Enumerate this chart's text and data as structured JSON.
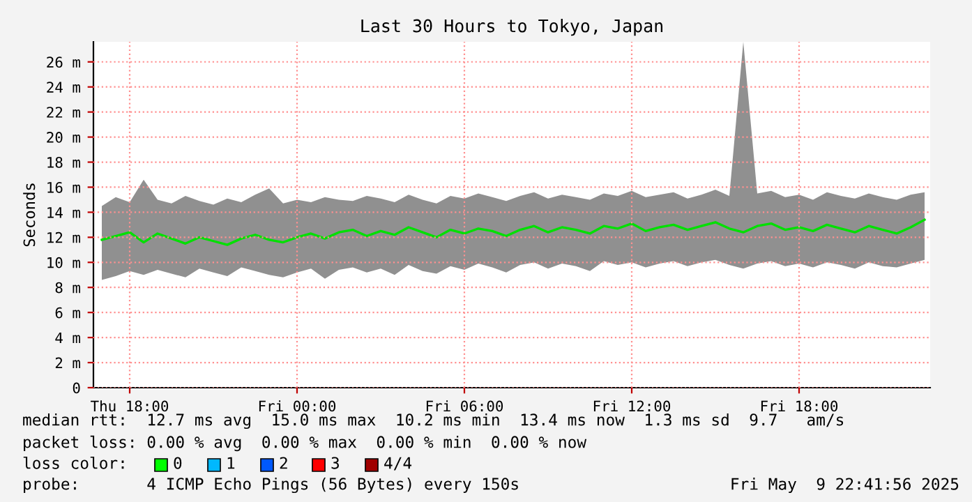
{
  "chart_data": {
    "type": "line",
    "title": "Last 30 Hours to Tokyo, Japan",
    "ylabel": "Seconds",
    "x": [
      "2025-05-08T17:00",
      "2025-05-08T17:30",
      "2025-05-08T18:00",
      "2025-05-08T18:30",
      "2025-05-08T19:00",
      "2025-05-08T19:30",
      "2025-05-08T20:00",
      "2025-05-08T20:30",
      "2025-05-08T21:00",
      "2025-05-08T21:30",
      "2025-05-08T22:00",
      "2025-05-08T22:30",
      "2025-05-08T23:00",
      "2025-05-08T23:30",
      "2025-05-09T00:00",
      "2025-05-09T00:30",
      "2025-05-09T01:00",
      "2025-05-09T01:30",
      "2025-05-09T02:00",
      "2025-05-09T02:30",
      "2025-05-09T03:00",
      "2025-05-09T03:30",
      "2025-05-09T04:00",
      "2025-05-09T04:30",
      "2025-05-09T05:00",
      "2025-05-09T05:30",
      "2025-05-09T06:00",
      "2025-05-09T06:30",
      "2025-05-09T07:00",
      "2025-05-09T07:30",
      "2025-05-09T08:00",
      "2025-05-09T08:30",
      "2025-05-09T09:00",
      "2025-05-09T09:30",
      "2025-05-09T10:00",
      "2025-05-09T10:30",
      "2025-05-09T11:00",
      "2025-05-09T11:30",
      "2025-05-09T12:00",
      "2025-05-09T12:30",
      "2025-05-09T13:00",
      "2025-05-09T13:30",
      "2025-05-09T14:00",
      "2025-05-09T14:30",
      "2025-05-09T15:00",
      "2025-05-09T15:30",
      "2025-05-09T16:00",
      "2025-05-09T16:30",
      "2025-05-09T17:00",
      "2025-05-09T17:30",
      "2025-05-09T18:00",
      "2025-05-09T18:30",
      "2025-05-09T19:00",
      "2025-05-09T19:30",
      "2025-05-09T20:00",
      "2025-05-09T20:30",
      "2025-05-09T21:00",
      "2025-05-09T21:30",
      "2025-05-09T22:00",
      "2025-05-09T22:30"
    ],
    "series": [
      {
        "color": "#00e000",
        "line_style": "solid",
        "values": [
          11.8,
          12.1,
          12.4,
          11.6,
          12.3,
          11.9,
          11.5,
          12.0,
          11.7,
          11.4,
          11.9,
          12.2,
          11.8,
          11.6,
          12.0,
          12.3,
          11.9,
          12.4,
          12.6,
          12.1,
          12.5,
          12.2,
          12.8,
          12.4,
          12.0,
          12.6,
          12.3,
          12.7,
          12.5,
          12.1,
          12.6,
          12.9,
          12.4,
          12.8,
          12.6,
          12.3,
          12.9,
          12.7,
          13.1,
          12.5,
          12.8,
          13.0,
          12.6,
          12.9,
          13.2,
          12.7,
          12.4,
          12.9,
          13.1,
          12.6,
          12.8,
          12.5,
          13.0,
          12.7,
          12.4,
          12.9,
          12.6,
          12.3,
          12.8,
          13.4
        ],
        "lower": [
          8.6,
          8.9,
          9.3,
          9.0,
          9.4,
          9.1,
          8.8,
          9.5,
          9.2,
          8.9,
          9.6,
          9.3,
          9.0,
          8.8,
          9.2,
          9.5,
          8.7,
          9.4,
          9.6,
          9.2,
          9.5,
          9.0,
          9.8,
          9.3,
          9.1,
          9.7,
          9.4,
          9.9,
          9.6,
          9.2,
          9.8,
          10.0,
          9.5,
          9.9,
          9.7,
          9.3,
          10.1,
          9.8,
          10.0,
          9.6,
          9.9,
          10.1,
          9.7,
          10.0,
          10.2,
          9.8,
          9.5,
          9.9,
          10.1,
          9.7,
          9.9,
          9.6,
          10.0,
          9.8,
          9.5,
          10.0,
          9.7,
          9.6,
          9.9,
          10.2
        ],
        "upper": [
          14.5,
          15.2,
          14.8,
          16.6,
          15.0,
          14.7,
          15.3,
          14.9,
          14.6,
          15.1,
          14.8,
          15.4,
          15.9,
          14.7,
          15.0,
          14.8,
          15.2,
          15.0,
          14.9,
          15.3,
          15.1,
          14.8,
          15.4,
          15.0,
          14.7,
          15.3,
          15.1,
          15.5,
          15.2,
          14.9,
          15.3,
          15.6,
          15.1,
          15.4,
          15.2,
          15.0,
          15.5,
          15.3,
          15.7,
          15.2,
          15.4,
          15.6,
          15.1,
          15.4,
          15.8,
          15.3,
          27.6,
          15.5,
          15.7,
          15.2,
          15.4,
          15.0,
          15.6,
          15.3,
          15.1,
          15.5,
          15.2,
          15.0,
          15.4,
          15.6
        ]
      }
    ],
    "xlim": [
      "2025-05-08T16:42",
      "2025-05-09T22:42"
    ],
    "xticks": [
      {
        "value": "2025-05-08T18:00",
        "label": "Thu 18:00"
      },
      {
        "value": "2025-05-09T00:00",
        "label": "Fri 00:00"
      },
      {
        "value": "2025-05-09T06:00",
        "label": "Fri 06:00"
      },
      {
        "value": "2025-05-09T12:00",
        "label": "Fri 12:00"
      },
      {
        "value": "2025-05-09T18:00",
        "label": "Fri 18:00"
      }
    ],
    "ylim": [
      0,
      27.6
    ],
    "yticks": [
      0,
      {
        "value": 2,
        "label": "2 m"
      },
      {
        "value": 4,
        "label": "4 m"
      },
      {
        "value": 6,
        "label": "6 m"
      },
      {
        "value": 8,
        "label": "8 m"
      },
      {
        "value": 10,
        "label": "10 m"
      },
      {
        "value": 12,
        "label": "12 m"
      },
      {
        "value": 14,
        "label": "14 m"
      },
      {
        "value": 16,
        "label": "16 m"
      },
      {
        "value": 18,
        "label": "18 m"
      },
      {
        "value": 20,
        "label": "20 m"
      },
      {
        "value": 22,
        "label": "22 m"
      },
      {
        "value": 24,
        "label": "24 m"
      },
      {
        "value": 26,
        "label": "26 m"
      }
    ],
    "grid": true,
    "annotations": [
      "median rtt:  12.7 ms avg  15.0 ms max  10.2 ms min  13.4 ms now  1.3 ms sd  9.7   am/s",
      "packet loss: 0.00 % avg  0.00 % max  0.00 % min  0.00 % now",
      "loss color:",
      "0",
      "1",
      "2",
      "3",
      "4/4",
      "probe:       4 ICMP Echo Pings (56 Bytes) every 150s",
      "Fri May  9 22:41:56 2025"
    ]
  }
}
